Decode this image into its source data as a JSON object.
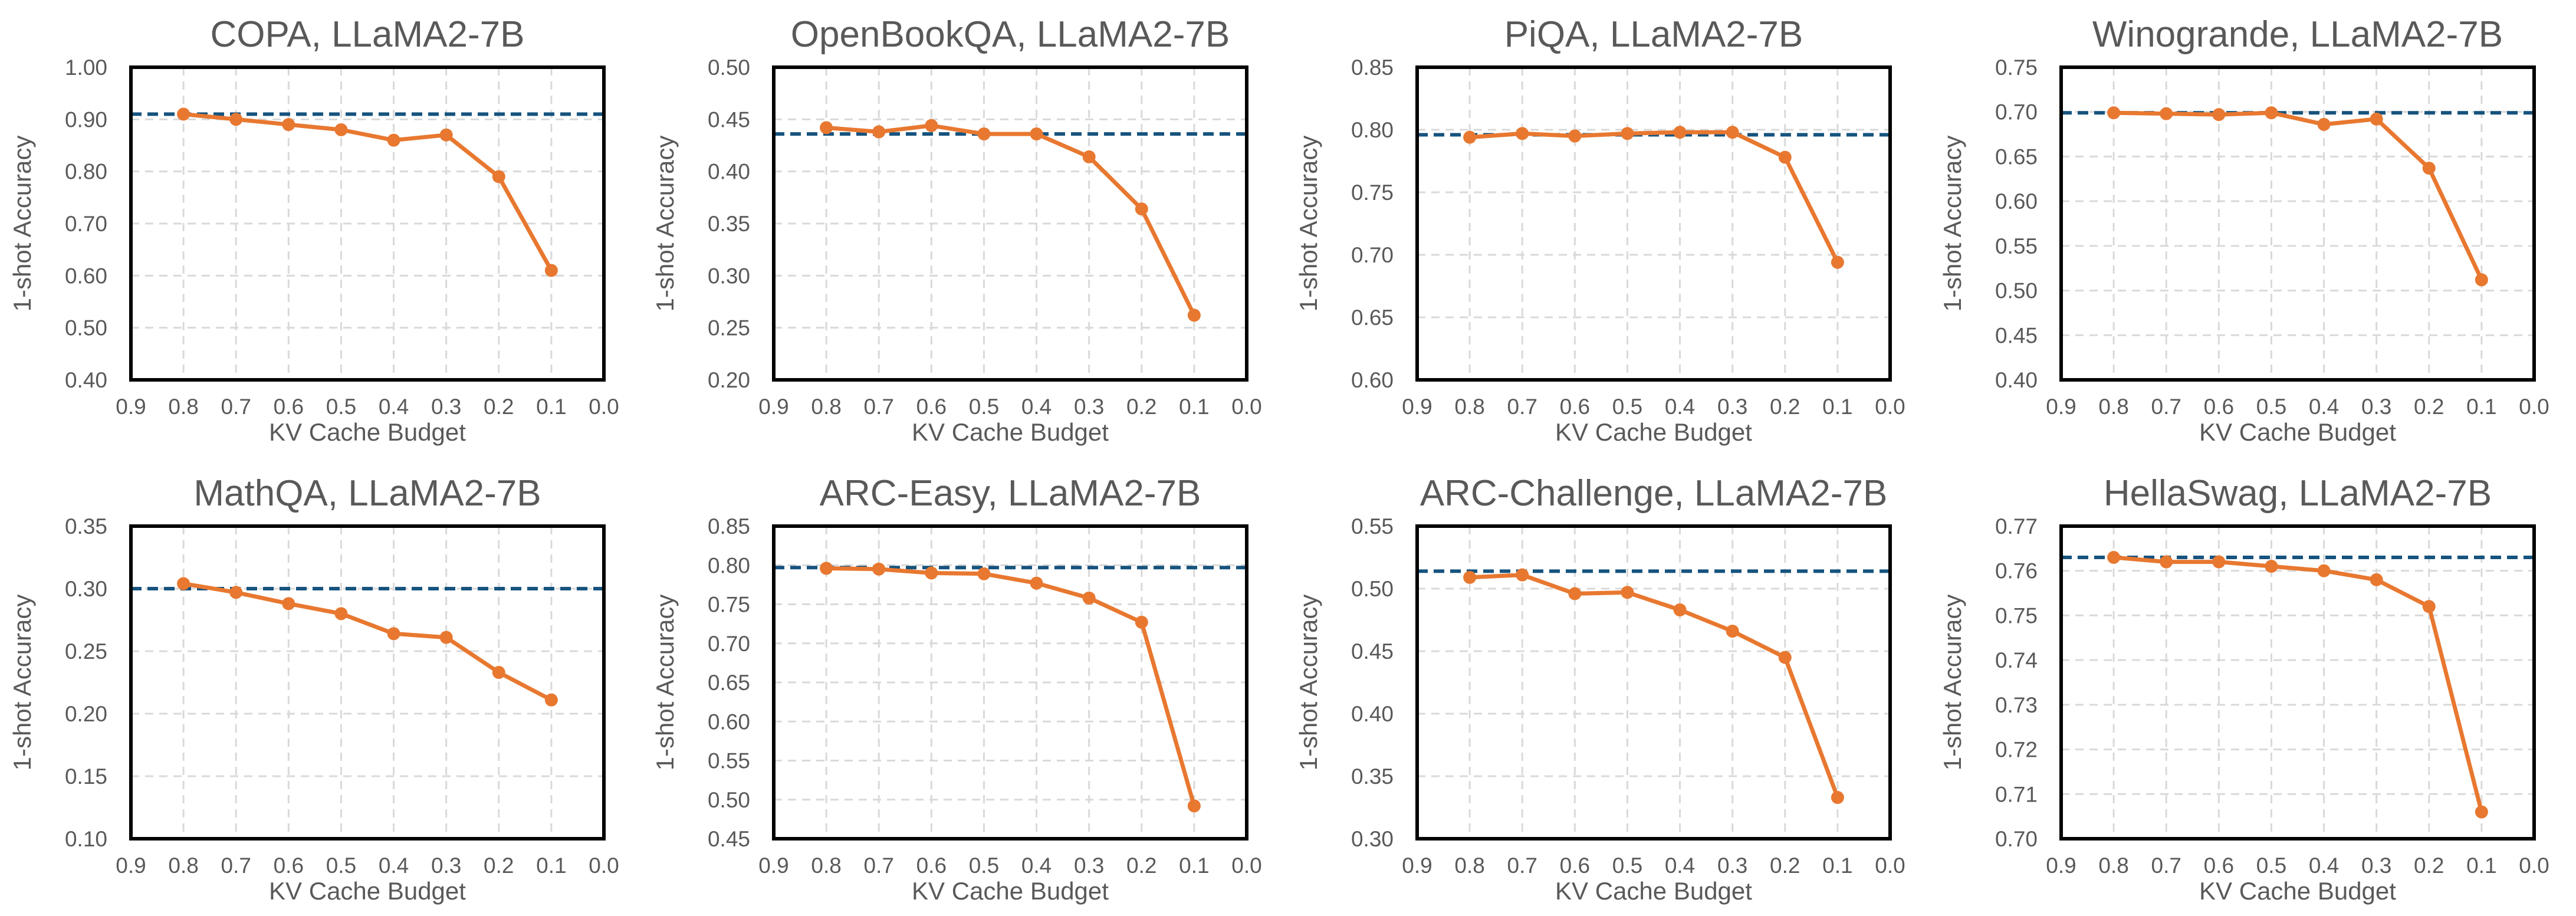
{
  "colors": {
    "series_line": "#E87830",
    "reference_line": "#16537E",
    "axes_frame": "#000000",
    "grid": "#D9D9D9",
    "text": "#595959"
  },
  "chart_data": [
    {
      "type": "line",
      "title": "COPA, LLaMA2-7B",
      "xlabel": "KV Cache Budget",
      "ylabel": "1-shot Accuracy",
      "xlim": [
        0.9,
        0.0
      ],
      "x_ticks": [
        "0.9",
        "0.8",
        "0.7",
        "0.6",
        "0.5",
        "0.4",
        "0.3",
        "0.2",
        "0.1",
        "0.0"
      ],
      "ylim": [
        0.4,
        1.0
      ],
      "y_ticks": [
        "0.40",
        "0.50",
        "0.60",
        "0.70",
        "0.80",
        "0.90",
        "1.00"
      ],
      "grid": true,
      "x": [
        0.8,
        0.7,
        0.6,
        0.5,
        0.4,
        0.3,
        0.2,
        0.1
      ],
      "series": [
        {
          "values": [
            0.91,
            0.9,
            0.89,
            0.88,
            0.86,
            0.87,
            0.79,
            0.61
          ]
        }
      ],
      "reference": 0.91
    },
    {
      "type": "line",
      "title": "OpenBookQA, LLaMA2-7B",
      "xlabel": "KV Cache Budget",
      "ylabel": "1-shot Accuracy",
      "xlim": [
        0.9,
        0.0
      ],
      "x_ticks": [
        "0.9",
        "0.8",
        "0.7",
        "0.6",
        "0.5",
        "0.4",
        "0.3",
        "0.2",
        "0.1",
        "0.0"
      ],
      "ylim": [
        0.2,
        0.5
      ],
      "y_ticks": [
        "0.20",
        "0.25",
        "0.30",
        "0.35",
        "0.40",
        "0.45",
        "0.50"
      ],
      "grid": true,
      "x": [
        0.8,
        0.7,
        0.6,
        0.5,
        0.4,
        0.3,
        0.2,
        0.1
      ],
      "series": [
        {
          "values": [
            0.442,
            0.438,
            0.444,
            0.436,
            0.436,
            0.414,
            0.364,
            0.262
          ]
        }
      ],
      "reference": 0.436
    },
    {
      "type": "line",
      "title": "PiQA, LLaMA2-7B",
      "xlabel": "KV Cache Budget",
      "ylabel": "1-shot Accuracy",
      "xlim": [
        0.9,
        0.0
      ],
      "x_ticks": [
        "0.9",
        "0.8",
        "0.7",
        "0.6",
        "0.5",
        "0.4",
        "0.3",
        "0.2",
        "0.1",
        "0.0"
      ],
      "ylim": [
        0.6,
        0.85
      ],
      "y_ticks": [
        "0.60",
        "0.65",
        "0.70",
        "0.75",
        "0.80",
        "0.85"
      ],
      "grid": true,
      "x": [
        0.8,
        0.7,
        0.6,
        0.5,
        0.4,
        0.3,
        0.2,
        0.1
      ],
      "series": [
        {
          "values": [
            0.794,
            0.797,
            0.795,
            0.797,
            0.798,
            0.798,
            0.778,
            0.694
          ]
        }
      ],
      "reference": 0.796
    },
    {
      "type": "line",
      "title": "Winogrande, LLaMA2-7B",
      "xlabel": "KV Cache Budget",
      "ylabel": "1-shot Accuracy",
      "xlim": [
        0.9,
        0.0
      ],
      "x_ticks": [
        "0.9",
        "0.8",
        "0.7",
        "0.6",
        "0.5",
        "0.4",
        "0.3",
        "0.2",
        "0.1",
        "0.0"
      ],
      "ylim": [
        0.4,
        0.75
      ],
      "y_ticks": [
        "0.40",
        "0.45",
        "0.50",
        "0.55",
        "0.60",
        "0.65",
        "0.70",
        "0.75"
      ],
      "grid": true,
      "x": [
        0.8,
        0.7,
        0.6,
        0.5,
        0.4,
        0.3,
        0.2,
        0.1
      ],
      "series": [
        {
          "values": [
            0.699,
            0.698,
            0.697,
            0.699,
            0.686,
            0.692,
            0.637,
            0.512
          ]
        }
      ],
      "reference": 0.699
    },
    {
      "type": "line",
      "title": "MathQA, LLaMA2-7B",
      "xlabel": "KV Cache Budget",
      "ylabel": "1-shot Accuracy",
      "xlim": [
        0.9,
        0.0
      ],
      "x_ticks": [
        "0.9",
        "0.8",
        "0.7",
        "0.6",
        "0.5",
        "0.4",
        "0.3",
        "0.2",
        "0.1",
        "0.0"
      ],
      "ylim": [
        0.1,
        0.35
      ],
      "y_ticks": [
        "0.10",
        "0.15",
        "0.20",
        "0.25",
        "0.30",
        "0.35"
      ],
      "grid": true,
      "x": [
        0.8,
        0.7,
        0.6,
        0.5,
        0.4,
        0.3,
        0.2,
        0.1
      ],
      "series": [
        {
          "values": [
            0.304,
            0.297,
            0.288,
            0.28,
            0.264,
            0.261,
            0.233,
            0.211
          ]
        }
      ],
      "reference": 0.3
    },
    {
      "type": "line",
      "title": "ARC-Easy, LLaMA2-7B",
      "xlabel": "KV Cache Budget",
      "ylabel": "1-shot Accuracy",
      "xlim": [
        0.9,
        0.0
      ],
      "x_ticks": [
        "0.9",
        "0.8",
        "0.7",
        "0.6",
        "0.5",
        "0.4",
        "0.3",
        "0.2",
        "0.1",
        "0.0"
      ],
      "ylim": [
        0.45,
        0.85
      ],
      "y_ticks": [
        "0.45",
        "0.50",
        "0.55",
        "0.60",
        "0.65",
        "0.70",
        "0.75",
        "0.80",
        "0.85"
      ],
      "grid": true,
      "x": [
        0.8,
        0.7,
        0.6,
        0.5,
        0.4,
        0.3,
        0.2,
        0.1
      ],
      "series": [
        {
          "values": [
            0.796,
            0.795,
            0.79,
            0.789,
            0.777,
            0.758,
            0.727,
            0.492
          ]
        }
      ],
      "reference": 0.797
    },
    {
      "type": "line",
      "title": "ARC-Challenge, LLaMA2-7B",
      "xlabel": "KV Cache Budget",
      "ylabel": "1-shot Accuracy",
      "xlim": [
        0.9,
        0.0
      ],
      "x_ticks": [
        "0.9",
        "0.8",
        "0.7",
        "0.6",
        "0.5",
        "0.4",
        "0.3",
        "0.2",
        "0.1",
        "0.0"
      ],
      "ylim": [
        0.3,
        0.55
      ],
      "y_ticks": [
        "0.30",
        "0.35",
        "0.40",
        "0.45",
        "0.50",
        "0.55"
      ],
      "grid": true,
      "x": [
        0.8,
        0.7,
        0.6,
        0.5,
        0.4,
        0.3,
        0.2,
        0.1
      ],
      "series": [
        {
          "values": [
            0.509,
            0.511,
            0.496,
            0.497,
            0.483,
            0.466,
            0.445,
            0.333
          ]
        }
      ],
      "reference": 0.514
    },
    {
      "type": "line",
      "title": "HellaSwag, LLaMA2-7B",
      "xlabel": "KV Cache Budget",
      "ylabel": "1-shot Accuracy",
      "xlim": [
        0.9,
        0.0
      ],
      "x_ticks": [
        "0.9",
        "0.8",
        "0.7",
        "0.6",
        "0.5",
        "0.4",
        "0.3",
        "0.2",
        "0.1",
        "0.0"
      ],
      "ylim": [
        0.7,
        0.77
      ],
      "y_ticks": [
        "0.70",
        "0.71",
        "0.72",
        "0.73",
        "0.74",
        "0.75",
        "0.76",
        "0.77"
      ],
      "grid": true,
      "x": [
        0.8,
        0.7,
        0.6,
        0.5,
        0.4,
        0.3,
        0.2,
        0.1
      ],
      "series": [
        {
          "values": [
            0.763,
            0.762,
            0.762,
            0.761,
            0.76,
            0.758,
            0.752,
            0.706
          ]
        }
      ],
      "reference": 0.763
    }
  ]
}
